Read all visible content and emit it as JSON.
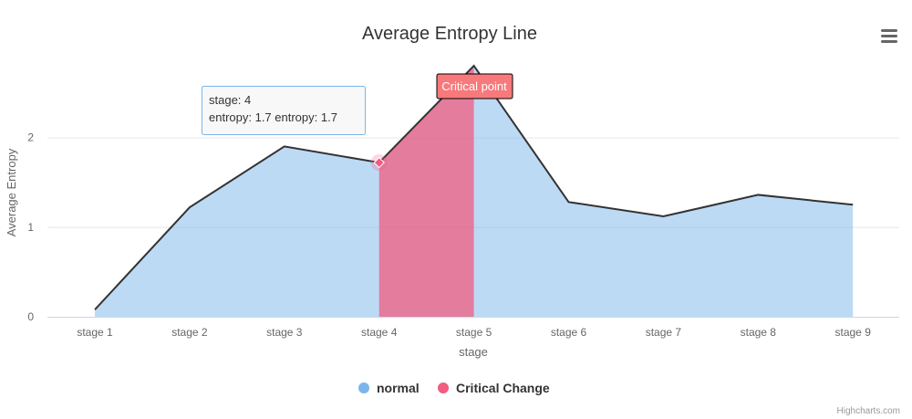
{
  "chart_data": {
    "type": "area",
    "title": "Average Entropy Line",
    "xlabel": "stage",
    "ylabel": "Average Entropy",
    "categories": [
      "stage 1",
      "stage 2",
      "stage 3",
      "stage 4",
      "stage 5",
      "stage 6",
      "stage 7",
      "stage 8",
      "stage 9"
    ],
    "yticks": [
      "0",
      "1",
      "2"
    ],
    "ylim": [
      0,
      2.8
    ],
    "grid": true,
    "legend_placement": "bottom-center",
    "series": [
      {
        "name": "normal",
        "color": "#7cb5ec",
        "values": [
          0.08,
          1.22,
          1.9,
          1.72,
          2.8,
          1.28,
          1.12,
          1.36,
          1.25
        ]
      },
      {
        "name": "Critical Change",
        "color": "#f15c80",
        "start_index": 3,
        "end_index": 4
      }
    ],
    "tooltip": {
      "line1": "stage: 4",
      "line2": "entropy:  1.7 entropy:  1.7"
    },
    "annotation": {
      "label": "Critical point",
      "index": 4
    },
    "credits": "Highcharts.com"
  }
}
